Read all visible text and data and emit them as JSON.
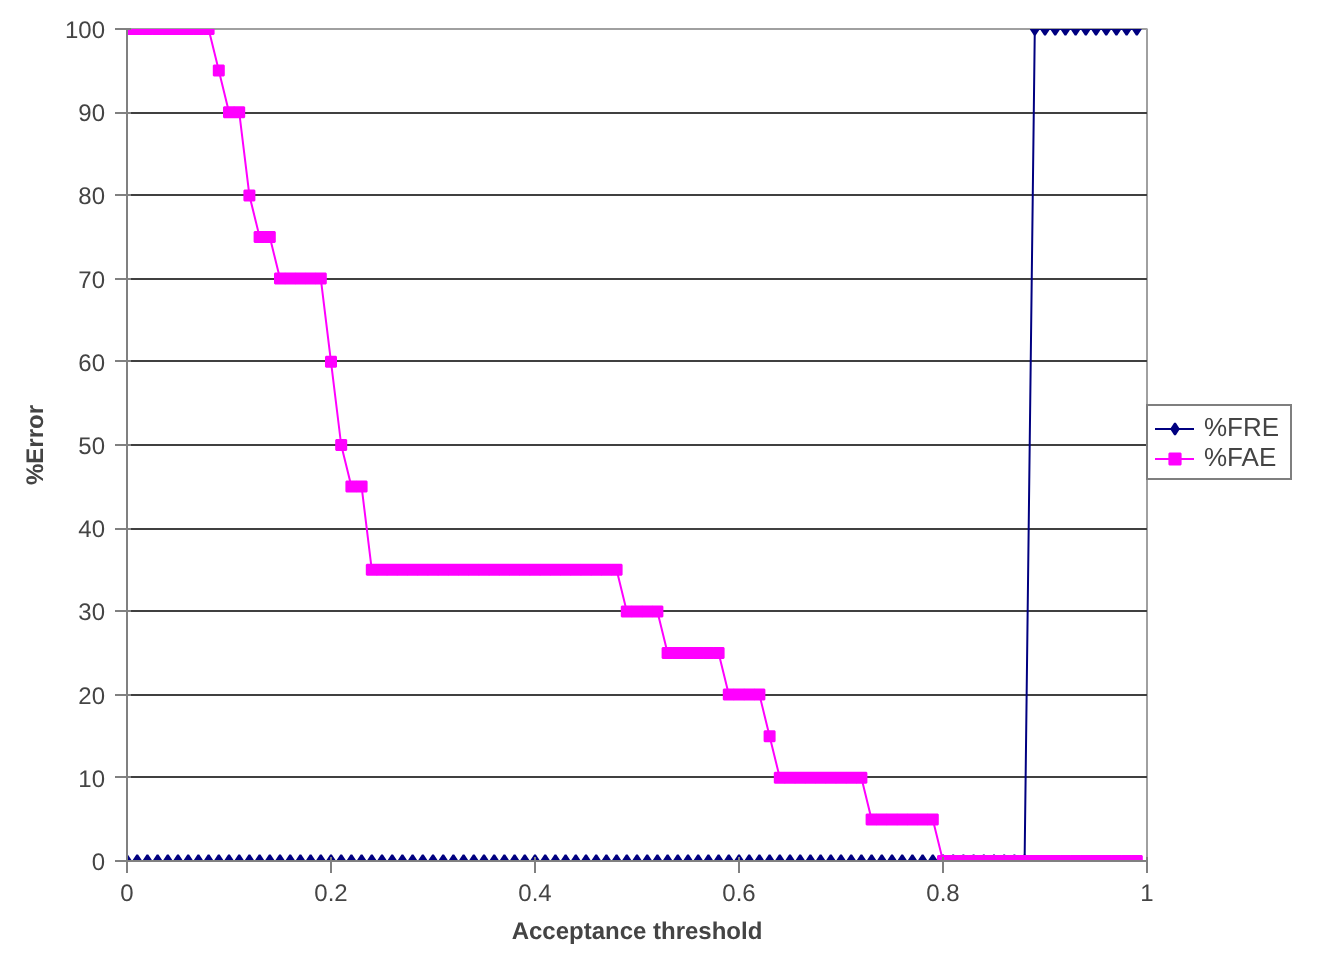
{
  "chart_data": {
    "type": "line",
    "xlabel": "Acceptance threshold",
    "ylabel": "%Error",
    "x": [
      0,
      0.01,
      0.02,
      0.03,
      0.04,
      0.05,
      0.06,
      0.07,
      0.08,
      0.09,
      0.1,
      0.11,
      0.12,
      0.13,
      0.14,
      0.15,
      0.16,
      0.17,
      0.18,
      0.19,
      0.2,
      0.21,
      0.22,
      0.23,
      0.24,
      0.25,
      0.26,
      0.27,
      0.28,
      0.29,
      0.3,
      0.31,
      0.32,
      0.33,
      0.34,
      0.35,
      0.36,
      0.37,
      0.38,
      0.39,
      0.4,
      0.41,
      0.42,
      0.43,
      0.44,
      0.45,
      0.46,
      0.47,
      0.48,
      0.49,
      0.5,
      0.51,
      0.52,
      0.53,
      0.54,
      0.55,
      0.56,
      0.57,
      0.58,
      0.59,
      0.6,
      0.61,
      0.62,
      0.63,
      0.64,
      0.65,
      0.66,
      0.67,
      0.68,
      0.69,
      0.7,
      0.71,
      0.72,
      0.73,
      0.74,
      0.75,
      0.76,
      0.77,
      0.78,
      0.79,
      0.8,
      0.81,
      0.82,
      0.83,
      0.84,
      0.85,
      0.86,
      0.87,
      0.88,
      0.89,
      0.9,
      0.91,
      0.92,
      0.93,
      0.94,
      0.95,
      0.96,
      0.97,
      0.98,
      0.99
    ],
    "series": [
      {
        "name": "%FRE",
        "color": "#000080",
        "marker": "diamond",
        "values": [
          0,
          0,
          0,
          0,
          0,
          0,
          0,
          0,
          0,
          0,
          0,
          0,
          0,
          0,
          0,
          0,
          0,
          0,
          0,
          0,
          0,
          0,
          0,
          0,
          0,
          0,
          0,
          0,
          0,
          0,
          0,
          0,
          0,
          0,
          0,
          0,
          0,
          0,
          0,
          0,
          0,
          0,
          0,
          0,
          0,
          0,
          0,
          0,
          0,
          0,
          0,
          0,
          0,
          0,
          0,
          0,
          0,
          0,
          0,
          0,
          0,
          0,
          0,
          0,
          0,
          0,
          0,
          0,
          0,
          0,
          0,
          0,
          0,
          0,
          0,
          0,
          0,
          0,
          0,
          0,
          0,
          0,
          0,
          0,
          0,
          0,
          0,
          0,
          0,
          100,
          100,
          100,
          100,
          100,
          100,
          100,
          100,
          100,
          100,
          100
        ]
      },
      {
        "name": "%FAE",
        "color": "#ff00ff",
        "marker": "square",
        "values": [
          100,
          100,
          100,
          100,
          100,
          100,
          100,
          100,
          100,
          95,
          90,
          90,
          80,
          75,
          75,
          70,
          70,
          70,
          70,
          70,
          60,
          50,
          45,
          45,
          35,
          35,
          35,
          35,
          35,
          35,
          35,
          35,
          35,
          35,
          35,
          35,
          35,
          35,
          35,
          35,
          35,
          35,
          35,
          35,
          35,
          35,
          35,
          35,
          35,
          30,
          30,
          30,
          30,
          25,
          25,
          25,
          25,
          25,
          25,
          20,
          20,
          20,
          20,
          15,
          10,
          10,
          10,
          10,
          10,
          10,
          10,
          10,
          10,
          5,
          5,
          5,
          5,
          5,
          5,
          5,
          0,
          0,
          0,
          0,
          0,
          0,
          0,
          0,
          0,
          0,
          0,
          0,
          0,
          0,
          0,
          0,
          0,
          0,
          0,
          0
        ]
      }
    ],
    "xlim": [
      0,
      1
    ],
    "ylim": [
      0,
      100
    ],
    "xticks": [
      0,
      0.2,
      0.4,
      0.6,
      0.8,
      1
    ],
    "yticks": [
      0,
      10,
      20,
      30,
      40,
      50,
      60,
      70,
      80,
      90,
      100
    ],
    "grid": "y",
    "legend": "right",
    "line_style": "solid"
  }
}
